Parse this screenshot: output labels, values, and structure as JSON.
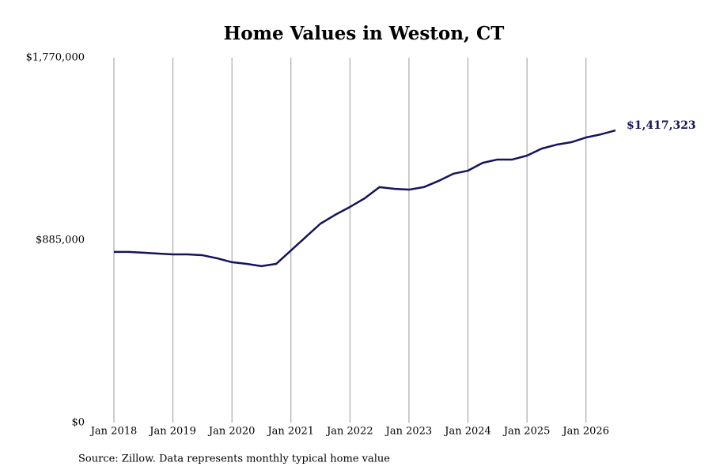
{
  "chart_data": {
    "type": "line",
    "title": "Home Values in Weston, CT",
    "source": "Source: Zillow. Data represents monthly typical home value",
    "x": [
      "2018-01",
      "2018-04",
      "2018-07",
      "2018-10",
      "2019-01",
      "2019-04",
      "2019-07",
      "2019-10",
      "2020-01",
      "2020-04",
      "2020-07",
      "2020-10",
      "2021-01",
      "2021-04",
      "2021-07",
      "2021-10",
      "2022-01",
      "2022-04",
      "2022-07",
      "2022-10",
      "2023-01",
      "2023-04",
      "2023-07",
      "2023-10",
      "2024-01",
      "2024-04",
      "2024-07",
      "2024-10",
      "2025-01",
      "2025-04",
      "2025-07",
      "2025-10",
      "2026-01",
      "2026-04",
      "2026-07"
    ],
    "series": [
      {
        "name": "Weston, CT",
        "color": "#14145a",
        "values": [
          828000,
          828000,
          824000,
          820000,
          816000,
          816000,
          812000,
          797000,
          778000,
          770000,
          759000,
          770000,
          835000,
          900000,
          965000,
          1008000,
          1046000,
          1088000,
          1142000,
          1134000,
          1130000,
          1142000,
          1172000,
          1207000,
          1222000,
          1260000,
          1276000,
          1276000,
          1295000,
          1329000,
          1348000,
          1360000,
          1383000,
          1398000,
          1417323
        ]
      }
    ],
    "annotations": [
      {
        "x": "2026-07",
        "value": 1417323,
        "label": "$1,417,323"
      }
    ],
    "xlim": [
      "2018-01",
      "2026-07"
    ],
    "xticks": [
      {
        "value": "2018-01",
        "label": "Jan 2018"
      },
      {
        "value": "2019-01",
        "label": "Jan 2019"
      },
      {
        "value": "2020-01",
        "label": "Jan 2020"
      },
      {
        "value": "2021-01",
        "label": "Jan 2021"
      },
      {
        "value": "2022-01",
        "label": "Jan 2022"
      },
      {
        "value": "2023-01",
        "label": "Jan 2023"
      },
      {
        "value": "2024-01",
        "label": "Jan 2024"
      },
      {
        "value": "2025-01",
        "label": "Jan 2025"
      },
      {
        "value": "2026-01",
        "label": "Jan 2026"
      }
    ],
    "ylim": [
      0,
      1770000
    ],
    "yticks": [
      {
        "value": 0,
        "label": "$0"
      },
      {
        "value": 885000,
        "label": "$885,000"
      },
      {
        "value": 1770000,
        "label": "$1,770,000"
      }
    ],
    "grid": "x"
  }
}
